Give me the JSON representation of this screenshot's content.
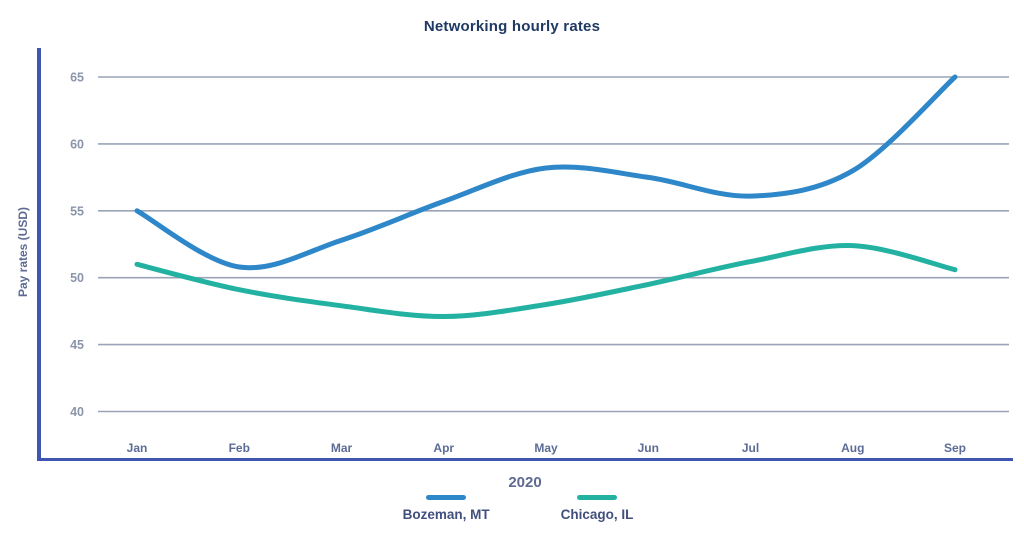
{
  "chart_data": {
    "type": "line",
    "title": "Networking hourly rates",
    "xlabel": "2020",
    "ylabel": "Pay rates (USD)",
    "x": [
      "Jan",
      "Feb",
      "Mar",
      "Apr",
      "May",
      "Jun",
      "Jul",
      "Aug",
      "Sep"
    ],
    "y_ticks": [
      65,
      60,
      55,
      50,
      45,
      40
    ],
    "ylim": [
      40,
      65
    ],
    "grid": true,
    "legend_position": "bottom-center",
    "series": [
      {
        "name": "Bozeman, MT",
        "color": "#2e87c9",
        "values": [
          55,
          50.8,
          52.8,
          55.7,
          58.2,
          57.5,
          56.1,
          58,
          65
        ]
      },
      {
        "name": "Chicago, IL",
        "color": "#23b2a2",
        "values": [
          51,
          49.1,
          47.9,
          47.1,
          48,
          49.5,
          51.2,
          52.4,
          50.6
        ]
      }
    ]
  },
  "style": {
    "title_color": "#1f3a64",
    "axis_line_color": "#3e55b2",
    "gridline_color": "#9aa3b8",
    "y_tick_label_color": "#8b95a9",
    "x_tick_label_color": "#5d6c96",
    "xlabel_color": "#5d6a92",
    "ylabel_color": "#5d6b94",
    "legend_text_color": "#414f7d"
  }
}
